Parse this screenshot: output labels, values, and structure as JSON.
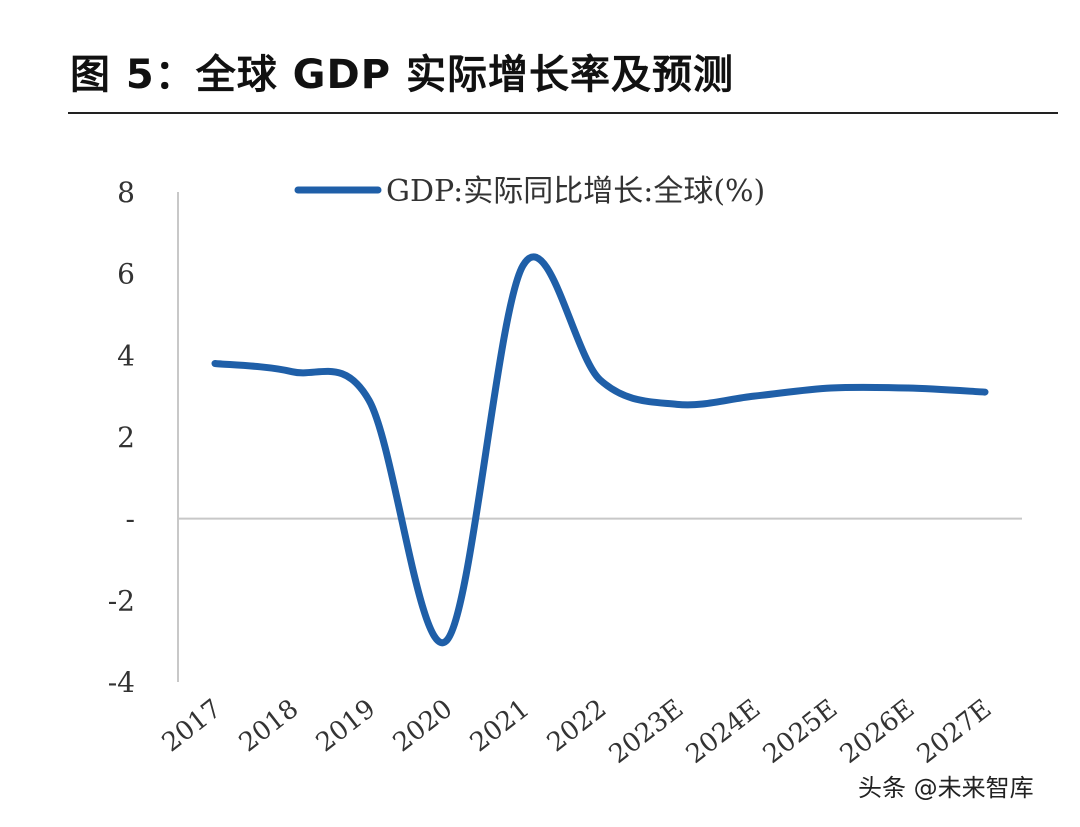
{
  "figure_title": "图 5：全球 GDP 实际增长率及预测",
  "watermark": "头条 @未来智库",
  "chart_data": {
    "type": "line",
    "title": "",
    "xlabel": "",
    "ylabel": "",
    "categories": [
      "2017",
      "2018",
      "2019",
      "2020",
      "2021",
      "2022",
      "2023E",
      "2024E",
      "2025E",
      "2026E",
      "2027E"
    ],
    "y_tick_labels": [
      "8",
      "6",
      "4",
      "2",
      "-",
      "-2",
      "-4"
    ],
    "y_tick_values": [
      8,
      6,
      4,
      2,
      0,
      -2,
      -4
    ],
    "ylim": [
      -4,
      8
    ],
    "grid": false,
    "legend_position": "top",
    "series": [
      {
        "name": "GDP:实际同比增长:全球(%)",
        "color": "#1f5fa8",
        "values": [
          3.8,
          3.6,
          2.9,
          -3.0,
          6.2,
          3.4,
          2.8,
          3.0,
          3.2,
          3.2,
          3.1
        ]
      }
    ]
  }
}
